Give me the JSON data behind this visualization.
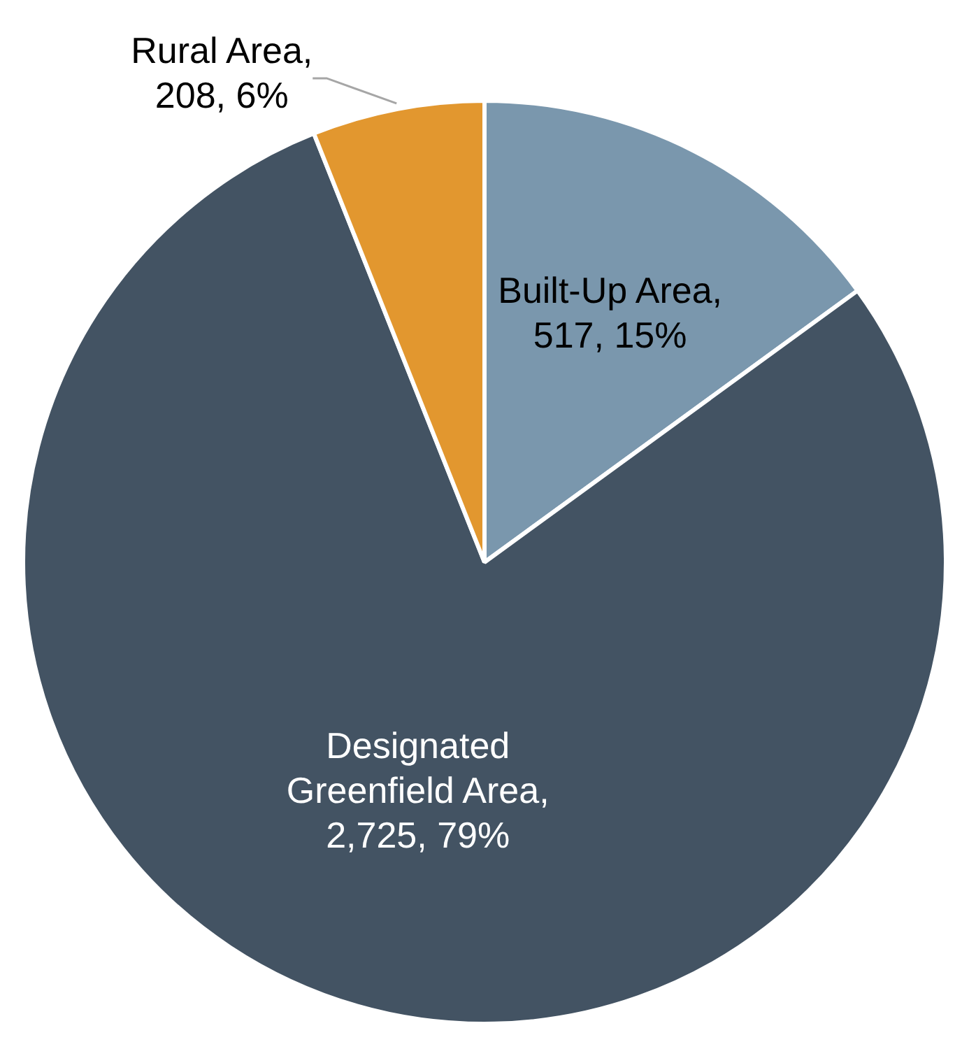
{
  "chart_data": {
    "type": "pie",
    "categories": [
      "Built-Up Area",
      "Designated Greenfield Area",
      "Rural Area"
    ],
    "values": [
      517,
      2725,
      208
    ],
    "value_labels": [
      ", 517, 15%",
      ", 2,725, 79%",
      ", 208, 6%"
    ],
    "colors": [
      "#7a97ad",
      "#435363",
      "#e2972f"
    ],
    "legend": false
  }
}
